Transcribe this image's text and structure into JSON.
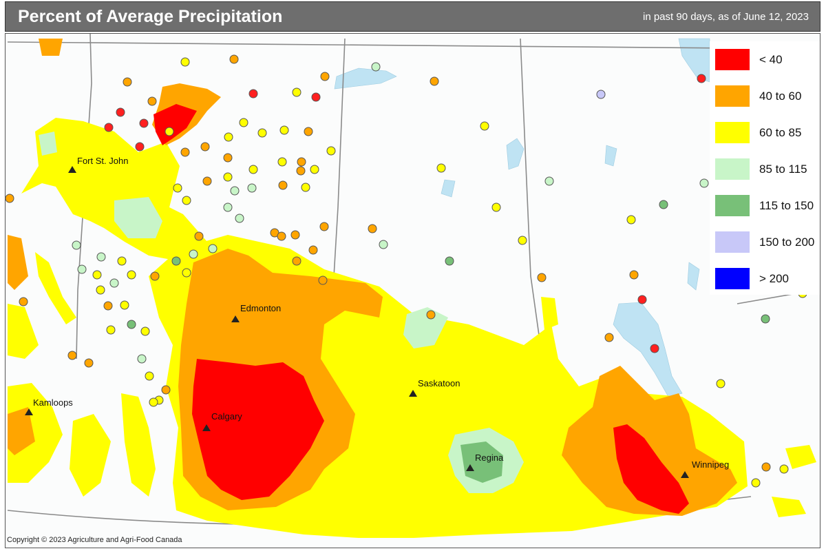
{
  "header": {
    "title": "Percent of Average Precipitation",
    "subtitle": "in past 90 days, as of June 12, 2023"
  },
  "legend": [
    {
      "label": "< 40",
      "color": "#ff0000"
    },
    {
      "label": "40 to 60",
      "color": "#ffa500"
    },
    {
      "label": "60 to 85",
      "color": "#ffff00"
    },
    {
      "label": "85 to 115",
      "color": "#c8f5c8"
    },
    {
      "label": "115 to 150",
      "color": "#78c078"
    },
    {
      "label": "150 to 200",
      "color": "#c8c8f8"
    },
    {
      "label": "> 200",
      "color": "#0000ff"
    }
  ],
  "cities": [
    {
      "name": "Fort St. John"
    },
    {
      "name": "Edmonton"
    },
    {
      "name": "Kamloops"
    },
    {
      "name": "Calgary"
    },
    {
      "name": "Saskatoon"
    },
    {
      "name": "Regina"
    },
    {
      "name": "Winnipeg"
    }
  ],
  "copyright": "Copyright © 2023 Agriculture and Agri-Food Canada"
}
